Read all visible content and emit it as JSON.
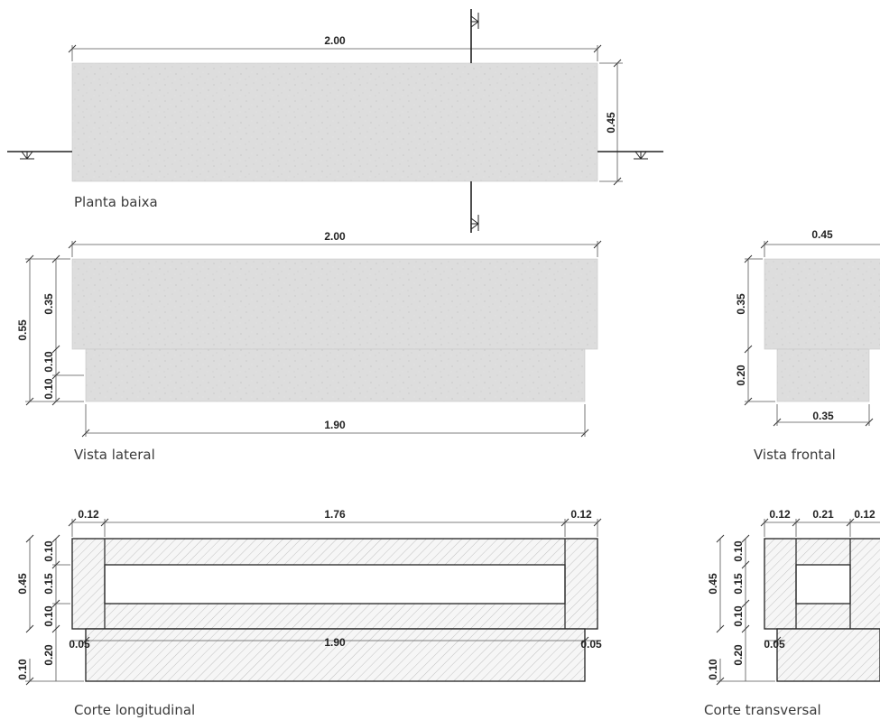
{
  "views": {
    "planta": {
      "caption": "Planta baixa",
      "dim_top": "2.00",
      "dim_right": "0.45"
    },
    "lateral": {
      "caption": "Vista lateral",
      "dim_top": "2.00",
      "dim_bottom": "1.90",
      "dim_total": "0.55",
      "dim_upper": "0.35",
      "dim_mid": "0.10",
      "dim_low": "0.10"
    },
    "frontal": {
      "caption": "Vista frontal",
      "dim_top": "0.45",
      "dim_bottom": "0.35",
      "dim_upper": "0.35",
      "dim_lower": "0.20"
    },
    "corte_long": {
      "caption": "Corte longitudinal",
      "dim_left_wall": "0.12",
      "dim_span": "1.76",
      "dim_right_wall": "0.12",
      "dim_total": "0.45",
      "dim_a": "0.10",
      "dim_b": "0.15",
      "dim_c": "0.10",
      "dim_d": "0.20",
      "dim_e": "0.10",
      "dim_base_left": "0.05",
      "dim_base": "1.90",
      "dim_base_right": "0.05"
    },
    "corte_trans": {
      "caption": "Corte transversal",
      "dim_a": "0.12",
      "dim_b": "0.21",
      "dim_c": "0.12",
      "dim_total": "0.45",
      "dim_v1": "0.10",
      "dim_v2": "0.15",
      "dim_v3": "0.10",
      "dim_v4": "0.20",
      "dim_v5": "0.10",
      "dim_base_left": "0.05"
    }
  },
  "colors": {
    "concrete": "#dcdcdc",
    "line": "#222222",
    "hatch": "#b5b5b5"
  }
}
